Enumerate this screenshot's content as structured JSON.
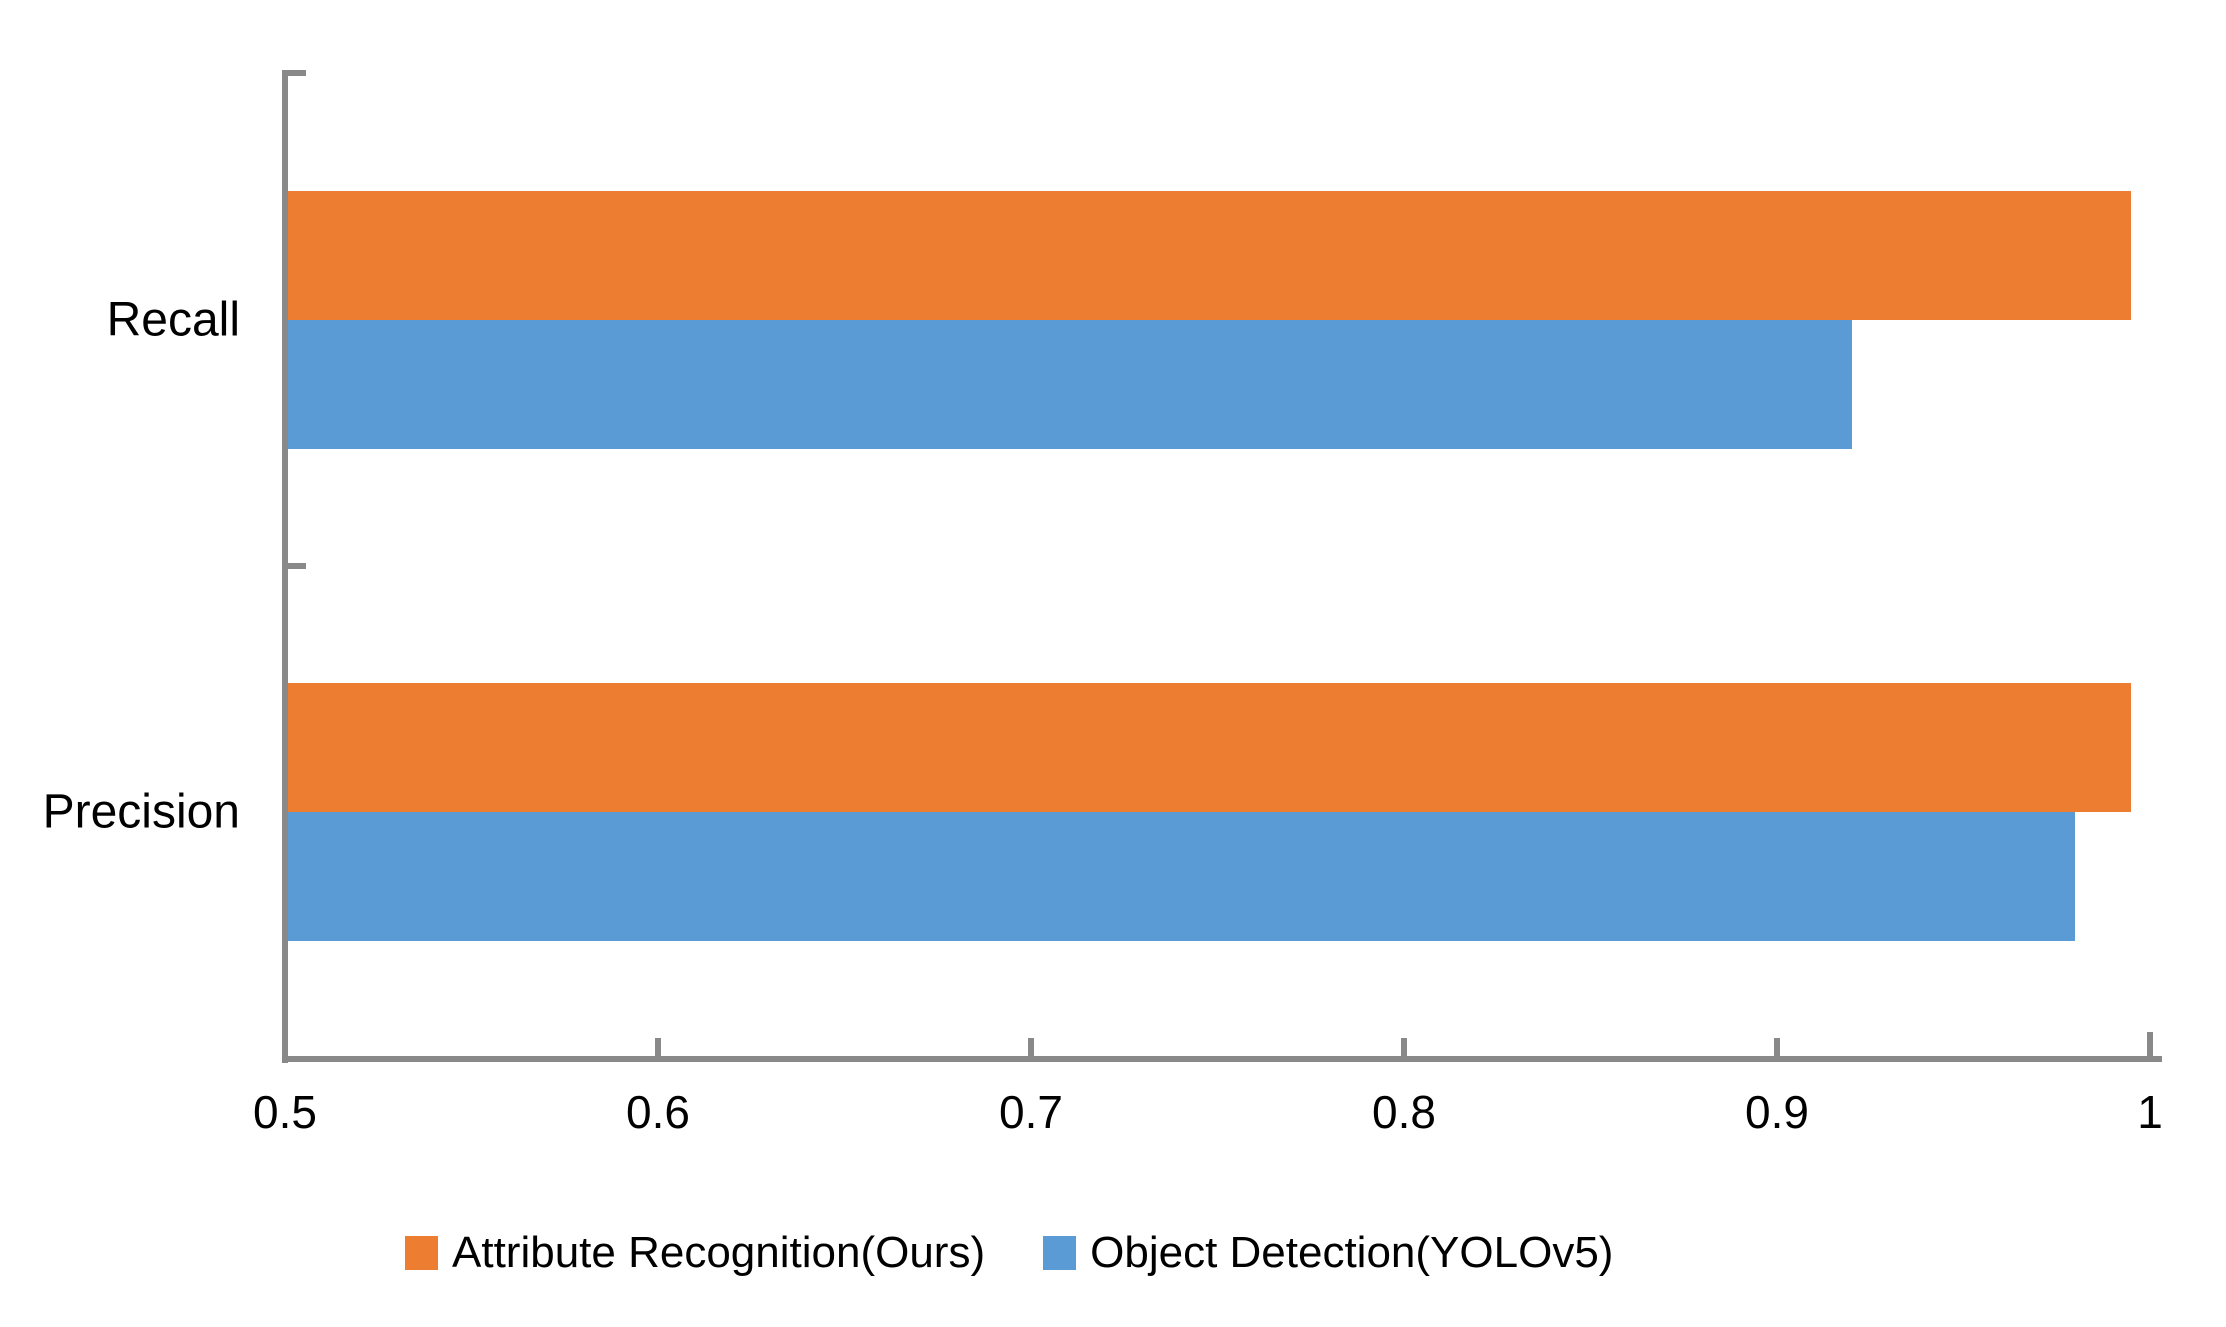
{
  "chart_data": {
    "type": "bar",
    "orientation": "horizontal",
    "title": "",
    "xlabel": "",
    "ylabel": "",
    "categories": [
      "Recall",
      "Precision"
    ],
    "series": [
      {
        "name": "Attribute Recognition(Ours)",
        "color": "#ED7D31",
        "values": [
          0.995,
          0.995
        ]
      },
      {
        "name": "Object Detection(YOLOv5)",
        "color": "#5B9BD5",
        "values": [
          0.92,
          0.98
        ]
      }
    ],
    "xlim": [
      0.5,
      1
    ],
    "x_tick_values": [
      0.5,
      0.6,
      0.7,
      0.8,
      0.9,
      1
    ],
    "x_tick_labels": [
      "0.5",
      "0.6",
      "0.7",
      "0.8",
      "0.9",
      "1"
    ],
    "grid": false,
    "legend_position": "bottom",
    "axis_color": "#898989",
    "text_color": "#000000",
    "background_color": "#ffffff"
  }
}
